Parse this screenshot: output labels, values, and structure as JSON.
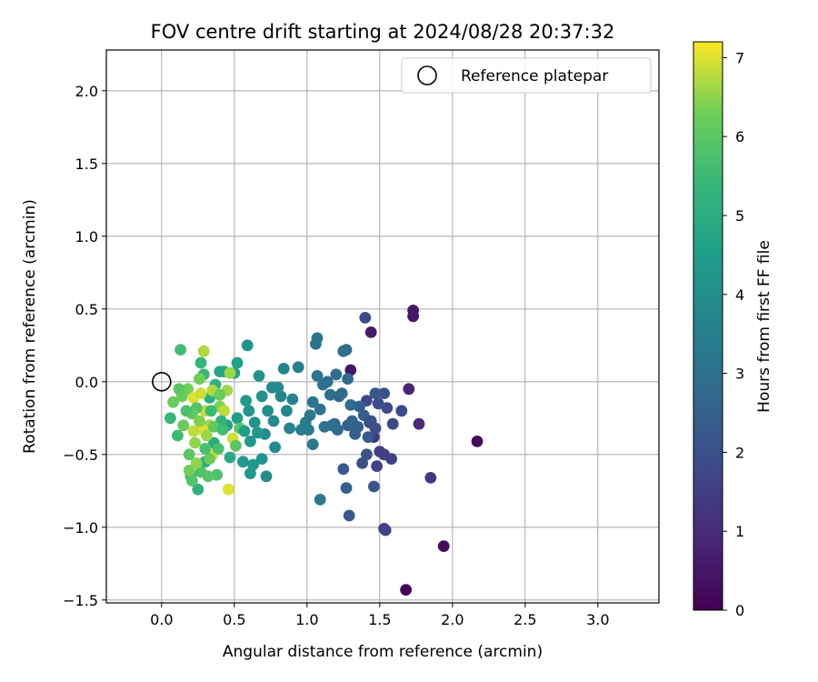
{
  "chart_data": {
    "type": "scatter",
    "title": "FOV centre drift starting at 2024/08/28 20:37:32",
    "xlabel": "Angular distance from reference (arcmin)",
    "ylabel": "Rotation from reference (arcmin)",
    "xlim": [
      -0.38,
      3.42
    ],
    "ylim": [
      -1.52,
      2.28
    ],
    "xticks": [
      0.0,
      0.5,
      1.0,
      1.5,
      2.0,
      2.5,
      3.0
    ],
    "xtick_labels": [
      "0.0",
      "0.5",
      "1.0",
      "1.5",
      "2.0",
      "2.5",
      "3.0"
    ],
    "yticks": [
      -1.5,
      -1.0,
      -0.5,
      0.0,
      0.5,
      1.0,
      1.5,
      2.0
    ],
    "ytick_labels": [
      "−1.5",
      "−1.0",
      "−0.5",
      "0.0",
      "0.5",
      "1.0",
      "1.5",
      "2.0"
    ],
    "grid": true,
    "legend": {
      "position": "top-right",
      "entries": [
        "Reference platepar"
      ]
    },
    "reference_point": {
      "x": 0.0,
      "y": 0.0
    },
    "colorbar": {
      "label": "Hours from first FF file",
      "colormap": "viridis",
      "range": [
        0,
        7.2
      ],
      "ticks": [
        0,
        1,
        2,
        3,
        4,
        5,
        6,
        7
      ],
      "tick_labels": [
        "0",
        "1",
        "2",
        "3",
        "4",
        "5",
        "6",
        "7"
      ]
    },
    "points": [
      {
        "x": 1.68,
        "y": -1.43,
        "c": 0.1
      },
      {
        "x": 1.94,
        "y": -1.13,
        "c": 0.2
      },
      {
        "x": 2.17,
        "y": -0.41,
        "c": 0.2
      },
      {
        "x": 1.73,
        "y": 0.49,
        "c": 0.5
      },
      {
        "x": 1.73,
        "y": 0.45,
        "c": 0.5
      },
      {
        "x": 1.44,
        "y": 0.34,
        "c": 0.6
      },
      {
        "x": 1.3,
        "y": 0.08,
        "c": 0.5
      },
      {
        "x": 1.7,
        "y": -0.05,
        "c": 0.8
      },
      {
        "x": 1.77,
        "y": -0.29,
        "c": 1.0
      },
      {
        "x": 1.85,
        "y": -0.66,
        "c": 1.4
      },
      {
        "x": 1.54,
        "y": -1.02,
        "c": 1.5
      },
      {
        "x": 1.53,
        "y": -1.01,
        "c": 1.6
      },
      {
        "x": 1.4,
        "y": 0.44,
        "c": 1.8
      },
      {
        "x": 1.46,
        "y": -0.38,
        "c": 1.4
      },
      {
        "x": 1.5,
        "y": -0.48,
        "c": 1.5
      },
      {
        "x": 1.48,
        "y": -0.58,
        "c": 1.6
      },
      {
        "x": 1.53,
        "y": -0.5,
        "c": 1.5
      },
      {
        "x": 1.58,
        "y": -0.53,
        "c": 1.6
      },
      {
        "x": 1.55,
        "y": -0.18,
        "c": 1.8
      },
      {
        "x": 1.59,
        "y": -0.29,
        "c": 1.8
      },
      {
        "x": 1.65,
        "y": -0.2,
        "c": 1.8
      },
      {
        "x": 1.41,
        "y": -0.13,
        "c": 1.8
      },
      {
        "x": 1.47,
        "y": -0.32,
        "c": 1.9
      },
      {
        "x": 1.43,
        "y": -0.28,
        "c": 2.0
      },
      {
        "x": 1.38,
        "y": -0.56,
        "c": 2.0
      },
      {
        "x": 1.41,
        "y": -0.5,
        "c": 2.1
      },
      {
        "x": 1.46,
        "y": -0.72,
        "c": 2.1
      },
      {
        "x": 1.29,
        "y": -0.92,
        "c": 2.3
      },
      {
        "x": 1.25,
        "y": -0.6,
        "c": 2.3
      },
      {
        "x": 1.27,
        "y": -0.73,
        "c": 2.4
      },
      {
        "x": 1.53,
        "y": -0.08,
        "c": 2.0
      },
      {
        "x": 1.47,
        "y": -0.08,
        "c": 2.2
      },
      {
        "x": 1.39,
        "y": -0.23,
        "c": 2.4
      },
      {
        "x": 1.33,
        "y": -0.36,
        "c": 2.4
      },
      {
        "x": 1.28,
        "y": -0.3,
        "c": 2.5
      },
      {
        "x": 1.21,
        "y": -0.33,
        "c": 2.7
      },
      {
        "x": 1.22,
        "y": -0.1,
        "c": 2.7
      },
      {
        "x": 1.3,
        "y": -0.16,
        "c": 2.8
      },
      {
        "x": 1.28,
        "y": 0.02,
        "c": 2.8
      },
      {
        "x": 1.27,
        "y": 0.22,
        "c": 2.8
      },
      {
        "x": 1.25,
        "y": 0.21,
        "c": 2.9
      },
      {
        "x": 1.2,
        "y": 0.05,
        "c": 2.9
      },
      {
        "x": 1.14,
        "y": 0.0,
        "c": 3.0
      },
      {
        "x": 1.11,
        "y": -0.02,
        "c": 3.0
      },
      {
        "x": 1.07,
        "y": 0.3,
        "c": 3.1
      },
      {
        "x": 1.06,
        "y": 0.26,
        "c": 3.1
      },
      {
        "x": 1.07,
        "y": 0.04,
        "c": 3.2
      },
      {
        "x": 1.12,
        "y": -0.31,
        "c": 3.0
      },
      {
        "x": 1.17,
        "y": -0.3,
        "c": 3.0
      },
      {
        "x": 1.04,
        "y": -0.14,
        "c": 3.2
      },
      {
        "x": 1.09,
        "y": -0.81,
        "c": 3.3
      },
      {
        "x": 1.04,
        "y": -0.43,
        "c": 3.3
      },
      {
        "x": 1.01,
        "y": -0.33,
        "c": 3.4
      },
      {
        "x": 0.99,
        "y": -0.28,
        "c": 3.5
      },
      {
        "x": 0.94,
        "y": 0.1,
        "c": 3.5
      },
      {
        "x": 0.88,
        "y": -0.32,
        "c": 3.6
      },
      {
        "x": 0.86,
        "y": -0.2,
        "c": 3.7
      },
      {
        "x": 0.84,
        "y": 0.09,
        "c": 3.7
      },
      {
        "x": 0.8,
        "y": -0.04,
        "c": 3.8
      },
      {
        "x": 0.76,
        "y": -0.04,
        "c": 3.8
      },
      {
        "x": 0.78,
        "y": -0.45,
        "c": 3.9
      },
      {
        "x": 0.72,
        "y": -0.65,
        "c": 4.0
      },
      {
        "x": 0.73,
        "y": -0.2,
        "c": 4.0
      },
      {
        "x": 0.71,
        "y": -0.36,
        "c": 4.0
      },
      {
        "x": 0.69,
        "y": -0.1,
        "c": 4.1
      },
      {
        "x": 0.67,
        "y": 0.04,
        "c": 4.1
      },
      {
        "x": 0.64,
        "y": -0.28,
        "c": 4.2
      },
      {
        "x": 0.6,
        "y": -0.2,
        "c": 4.2
      },
      {
        "x": 0.59,
        "y": 0.25,
        "c": 4.2
      },
      {
        "x": 0.61,
        "y": -0.41,
        "c": 4.3
      },
      {
        "x": 0.61,
        "y": -0.63,
        "c": 4.3
      },
      {
        "x": 0.63,
        "y": -0.57,
        "c": 4.4
      },
      {
        "x": 0.56,
        "y": -0.55,
        "c": 4.4
      },
      {
        "x": 0.52,
        "y": -0.25,
        "c": 4.5
      },
      {
        "x": 0.5,
        "y": 0.06,
        "c": 4.6
      },
      {
        "x": 0.52,
        "y": 0.13,
        "c": 4.6
      },
      {
        "x": 0.45,
        "y": -0.3,
        "c": 4.7
      },
      {
        "x": 0.43,
        "y": 0.07,
        "c": 4.8
      },
      {
        "x": 0.4,
        "y": 0.07,
        "c": 4.8
      },
      {
        "x": 0.33,
        "y": -0.11,
        "c": 5.0
      },
      {
        "x": 0.36,
        "y": -0.42,
        "c": 5.0
      },
      {
        "x": 0.3,
        "y": -0.55,
        "c": 5.0
      },
      {
        "x": 0.25,
        "y": -0.74,
        "c": 5.2
      },
      {
        "x": 0.27,
        "y": 0.13,
        "c": 5.3
      },
      {
        "x": 0.29,
        "y": 0.05,
        "c": 5.4
      },
      {
        "x": 0.06,
        "y": -0.25,
        "c": 5.4
      },
      {
        "x": 0.11,
        "y": -0.37,
        "c": 5.5
      },
      {
        "x": 0.13,
        "y": 0.22,
        "c": 5.6
      },
      {
        "x": 0.2,
        "y": -0.65,
        "c": 5.6
      },
      {
        "x": 0.27,
        "y": -0.62,
        "c": 5.8
      },
      {
        "x": 0.21,
        "y": -0.68,
        "c": 5.9
      },
      {
        "x": 0.19,
        "y": -0.5,
        "c": 6.0
      },
      {
        "x": 0.15,
        "y": -0.3,
        "c": 6.2
      },
      {
        "x": 0.08,
        "y": -0.14,
        "c": 6.2
      },
      {
        "x": 0.14,
        "y": -0.1,
        "c": 6.2
      },
      {
        "x": 0.18,
        "y": -0.05,
        "c": 6.3
      },
      {
        "x": 0.26,
        "y": 0.02,
        "c": 6.3
      },
      {
        "x": 0.29,
        "y": 0.21,
        "c": 6.7
      },
      {
        "x": 0.22,
        "y": -0.11,
        "c": 7.0
      },
      {
        "x": 0.3,
        "y": -0.2,
        "c": 6.8
      },
      {
        "x": 0.33,
        "y": -0.3,
        "c": 6.6
      },
      {
        "x": 0.35,
        "y": -0.5,
        "c": 6.9
      },
      {
        "x": 0.28,
        "y": -0.33,
        "c": 7.0
      },
      {
        "x": 0.23,
        "y": -0.42,
        "c": 6.5
      },
      {
        "x": 0.4,
        "y": -0.17,
        "c": 6.4
      },
      {
        "x": 0.43,
        "y": -0.2,
        "c": 6.8
      },
      {
        "x": 0.45,
        "y": -0.06,
        "c": 6.6
      },
      {
        "x": 0.46,
        "y": -0.74,
        "c": 7.0
      },
      {
        "x": 0.49,
        "y": -0.39,
        "c": 6.9
      },
      {
        "x": 0.51,
        "y": -0.44,
        "c": 6.0
      },
      {
        "x": 0.54,
        "y": -0.32,
        "c": 6.0
      },
      {
        "x": 0.38,
        "y": -0.64,
        "c": 5.8
      },
      {
        "x": 0.32,
        "y": -0.65,
        "c": 5.9
      },
      {
        "x": 0.47,
        "y": 0.06,
        "c": 6.6
      },
      {
        "x": 0.24,
        "y": -0.18,
        "c": 5.9
      },
      {
        "x": 0.3,
        "y": -0.46,
        "c": 5.7
      },
      {
        "x": 0.34,
        "y": -0.2,
        "c": 5.5
      },
      {
        "x": 0.41,
        "y": -0.27,
        "c": 5.3
      },
      {
        "x": 0.37,
        "y": -0.02,
        "c": 5.2
      },
      {
        "x": 0.47,
        "y": -0.52,
        "c": 4.9
      },
      {
        "x": 0.57,
        "y": -0.34,
        "c": 4.5
      },
      {
        "x": 0.66,
        "y": -0.35,
        "c": 4.3
      },
      {
        "x": 0.58,
        "y": -0.13,
        "c": 4.4
      },
      {
        "x": 0.69,
        "y": -0.53,
        "c": 4.2
      },
      {
        "x": 0.77,
        "y": -0.27,
        "c": 3.9
      },
      {
        "x": 0.82,
        "y": -0.1,
        "c": 3.8
      },
      {
        "x": 0.9,
        "y": -0.12,
        "c": 3.6
      },
      {
        "x": 0.96,
        "y": -0.33,
        "c": 3.5
      },
      {
        "x": 1.02,
        "y": -0.23,
        "c": 3.3
      },
      {
        "x": 1.09,
        "y": -0.19,
        "c": 3.2
      },
      {
        "x": 1.16,
        "y": -0.09,
        "c": 3.0
      },
      {
        "x": 1.19,
        "y": -0.29,
        "c": 2.9
      },
      {
        "x": 1.24,
        "y": -0.08,
        "c": 2.8
      },
      {
        "x": 1.31,
        "y": -0.27,
        "c": 2.6
      },
      {
        "x": 1.35,
        "y": -0.31,
        "c": 2.5
      },
      {
        "x": 1.36,
        "y": -0.17,
        "c": 2.4
      },
      {
        "x": 1.42,
        "y": -0.38,
        "c": 2.2
      },
      {
        "x": 1.44,
        "y": -0.27,
        "c": 2.1
      },
      {
        "x": 1.49,
        "y": -0.15,
        "c": 1.9
      },
      {
        "x": 0.21,
        "y": -0.22,
        "c": 6.1
      },
      {
        "x": 0.26,
        "y": -0.27,
        "c": 6.4
      },
      {
        "x": 0.31,
        "y": -0.37,
        "c": 6.6
      },
      {
        "x": 0.36,
        "y": -0.31,
        "c": 6.1
      },
      {
        "x": 0.42,
        "y": -0.33,
        "c": 5.6
      },
      {
        "x": 0.22,
        "y": -0.34,
        "c": 6.8
      },
      {
        "x": 0.19,
        "y": -0.61,
        "c": 6.3
      },
      {
        "x": 0.24,
        "y": -0.56,
        "c": 6.5
      },
      {
        "x": 0.33,
        "y": -0.53,
        "c": 6.2
      },
      {
        "x": 0.39,
        "y": -0.46,
        "c": 5.7
      },
      {
        "x": 0.27,
        "y": -0.08,
        "c": 6.9
      },
      {
        "x": 0.35,
        "y": -0.06,
        "c": 6.7
      },
      {
        "x": 0.4,
        "y": -0.09,
        "c": 6.2
      },
      {
        "x": 0.17,
        "y": -0.2,
        "c": 5.8
      },
      {
        "x": 0.12,
        "y": -0.05,
        "c": 6.0
      }
    ]
  }
}
